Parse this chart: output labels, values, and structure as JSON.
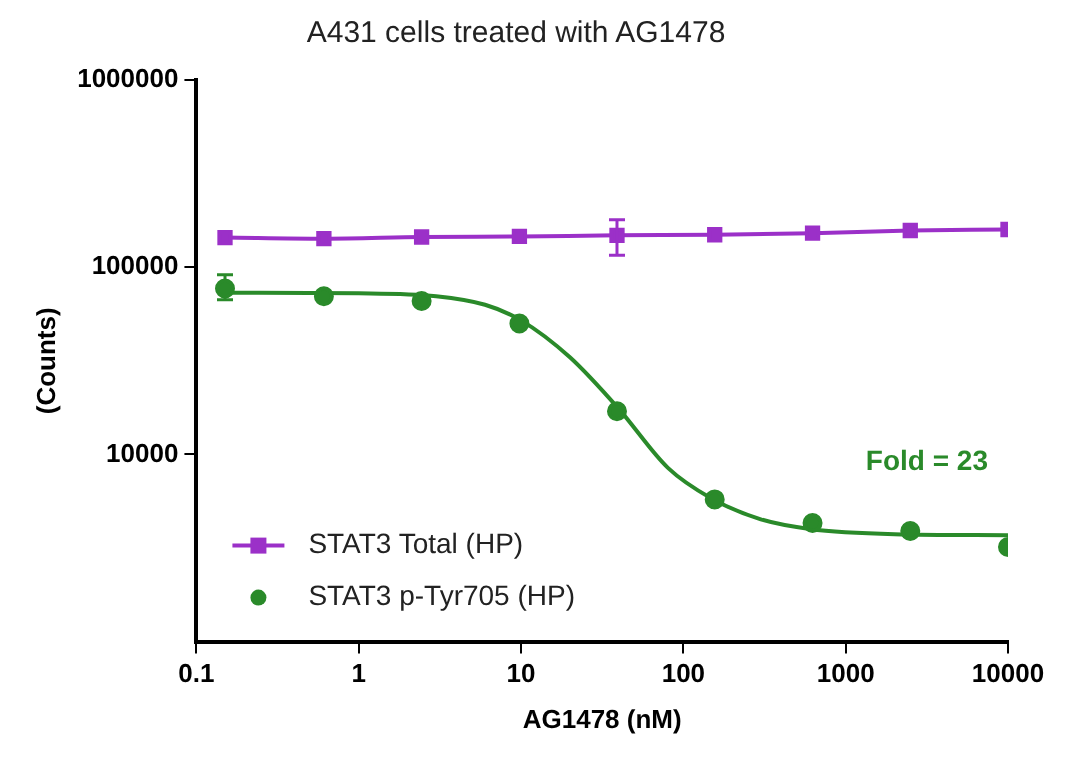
{
  "chart_data": {
    "type": "line",
    "title": "A431 cells treated with AG1478",
    "xlabel": "AG1478 (nM)",
    "ylabel": "(Counts)",
    "log": "xy",
    "xlim": [
      0.1,
      10000
    ],
    "xticks": [
      0.1,
      1,
      10,
      100,
      1000,
      10000
    ],
    "ylim": [
      1000,
      1000000
    ],
    "yticks": [
      10000,
      100000,
      1000000
    ],
    "grid": false,
    "legend": "bottom left",
    "annotations": [
      "Fold = 23"
    ],
    "x": [
      0.15,
      0.61,
      2.44,
      9.77,
      39,
      156,
      625,
      2500,
      10000
    ],
    "series": [
      {
        "name": "STAT3 Total (HP)",
        "marker": "square",
        "color": "#9b30c8",
        "values": [
          144000,
          142000,
          145000,
          146000,
          148000,
          149000,
          152000,
          157000,
          159000
        ],
        "errors": [
          null,
          null,
          null,
          null,
          [
            116000,
            179000
          ],
          null,
          null,
          null,
          null
        ]
      },
      {
        "name": "STAT3 p-Tyr705 (HP)",
        "type": "scatter",
        "marker": "circle",
        "color": "#2a8a2a",
        "values": [
          77000,
          70000,
          66000,
          50000,
          17000,
          5750,
          4300,
          3900,
          3200
        ],
        "errors": [
          [
            67000,
            91000
          ],
          null,
          null,
          null,
          null,
          null,
          null,
          null,
          null
        ]
      },
      {
        "type": "line",
        "marker": "none",
        "color": "#2a8a2a",
        "x": [
          0.15,
          1,
          3,
          6,
          10,
          20,
          40,
          80,
          150,
          300,
          600,
          2000,
          10000
        ],
        "values": [
          73000,
          72500,
          70000,
          63000,
          52000,
          33000,
          17500,
          8500,
          5800,
          4500,
          4000,
          3750,
          3700
        ]
      }
    ]
  }
}
